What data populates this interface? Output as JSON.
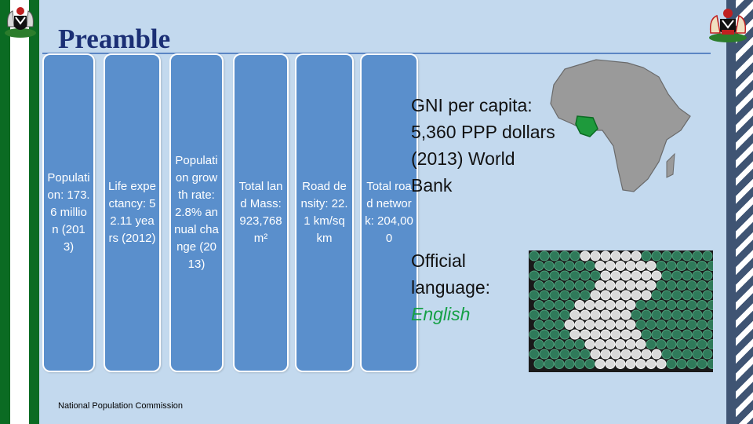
{
  "title": "Preamble",
  "stats": [
    {
      "text": "Population: 173.6 million (2013)"
    },
    {
      "text": "Life expectancy: 52.11 years (2012)"
    },
    {
      "text": "Population growth rate: 2.8% annual change (2013)"
    },
    {
      "text": "Total land Mass: 923,768m²"
    },
    {
      "text": "Road density: 22.1 km/sq km"
    },
    {
      "text": "Total road network: 204,000"
    }
  ],
  "source": "National Population Commission",
  "gni": "GNI per capita: 5,360 PPP dollars (2013) World Bank",
  "language": {
    "label": "Official language:",
    "value": "English"
  },
  "colors": {
    "green": "#0b6b23",
    "box": "#5a8fcc",
    "title": "#1b2f75",
    "accent": "#15a046"
  },
  "icons": [
    "nigeria-coat-of-arms-icon",
    "coat-of-arms-right-icon",
    "africa-map-icon",
    "flag-beads-image"
  ]
}
